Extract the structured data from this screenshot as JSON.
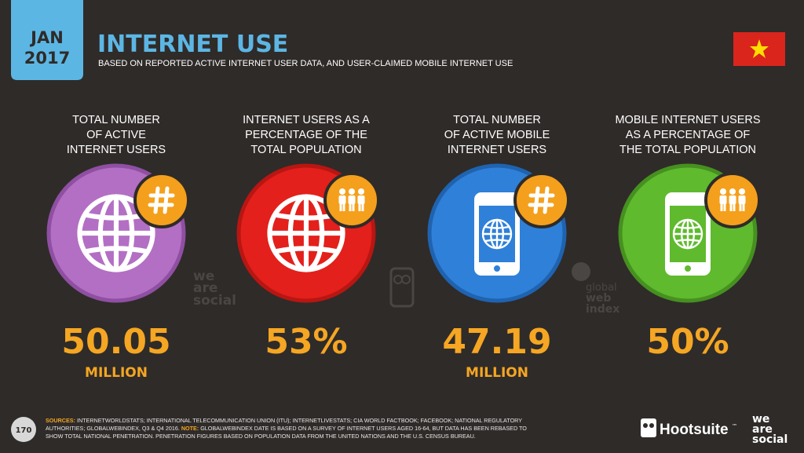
{
  "header": {
    "month": "JAN",
    "year": "2017",
    "title": "INTERNET USE",
    "subtitle": "BASED ON REPORTED ACTIVE INTERNET USER DATA, AND USER-CLAIMED MOBILE INTERNET USE"
  },
  "stats": [
    {
      "heading": [
        "TOTAL NUMBER",
        "OF ACTIVE",
        "INTERNET USERS"
      ],
      "value": "50.05",
      "unit": "MILLION"
    },
    {
      "heading": [
        "INTERNET USERS AS A",
        "PERCENTAGE OF THE",
        "TOTAL POPULATION"
      ],
      "value": "53%"
    },
    {
      "heading": [
        "TOTAL NUMBER",
        "OF ACTIVE MOBILE",
        "INTERNET USERS"
      ],
      "value": "47.19",
      "unit": "MILLION"
    },
    {
      "heading": [
        "MOBILE INTERNET USERS",
        "AS A PERCENTAGE OF",
        "THE TOTAL POPULATION"
      ],
      "value": "50%"
    }
  ],
  "watermarks": {
    "was": [
      "we",
      "are",
      "social"
    ],
    "gwi": [
      "global",
      "web",
      "index"
    ]
  },
  "footer": {
    "page": "170",
    "sources_label": "SOURCES:",
    "line_1": "INTERNETWORLDSTATS; INTERNATIONAL TELECOMMUNICATION UNION (ITU); INTERNETLIVESTATS; CIA WORLD FACTBOOK; FACEBOOK; NATIONAL REGULATORY",
    "line_2": "AUTHORITIES; GLOBALWEBINDEX, Q3 & Q4 2016.",
    "note_label": "NOTE:",
    "line_2b": "GLOBALWEBINDEX DATE IS BASED ON A SURVEY OF INTERNET USERS AGED 16-64, BUT DATA HAS BEEN REBASED TO",
    "line_3": "SHOW TOTAL NATIONAL PENETRATION. PENETRATION FIGURES BASED ON POPULATION DATA FROM THE UNITED NATIONS AND THE U.S. CENSUS BUREAU.",
    "brand": "Hootsuite",
    "tm": "™",
    "was": [
      "we",
      "are",
      "social"
    ]
  }
}
